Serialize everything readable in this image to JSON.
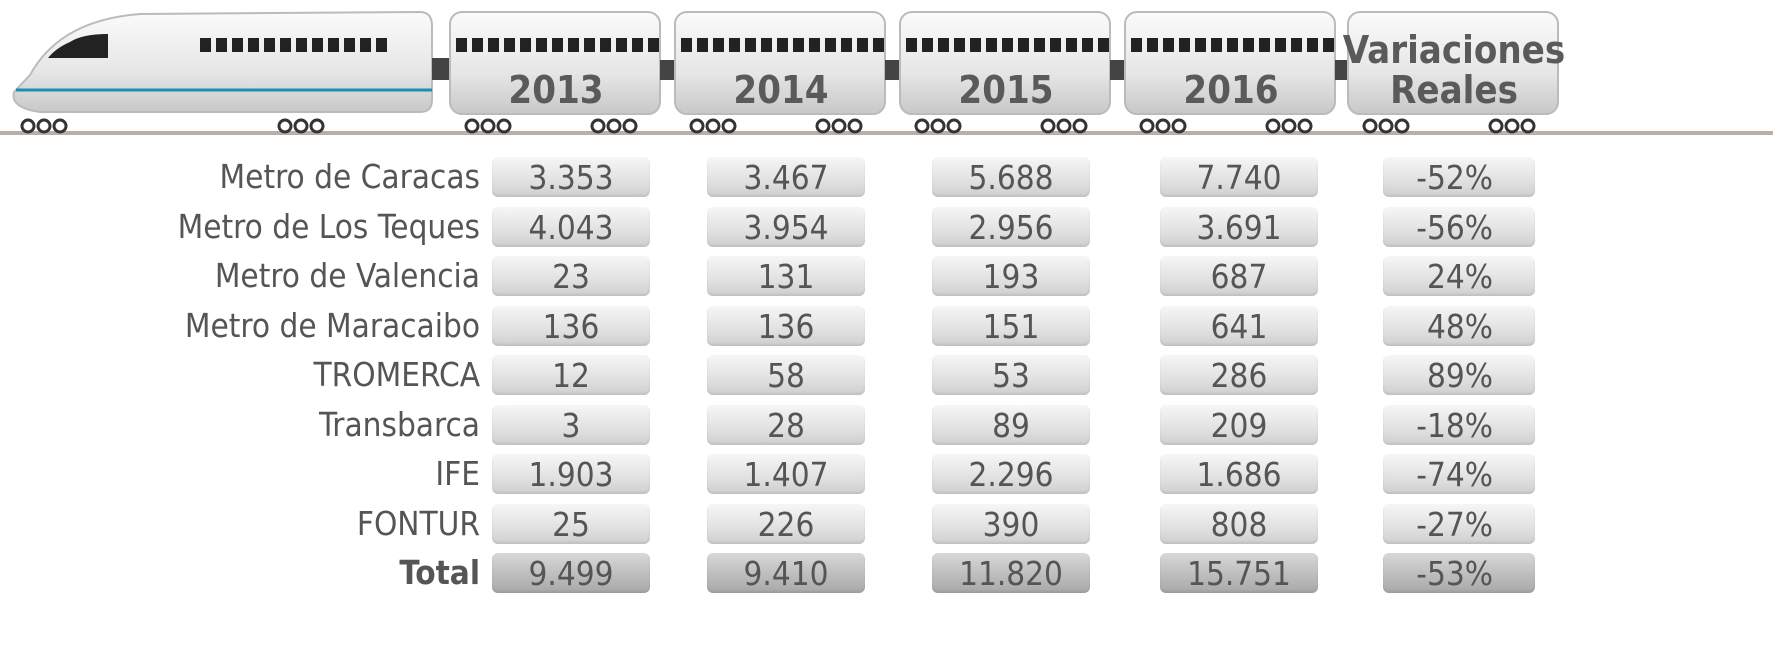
{
  "table": {
    "columns": [
      "2013",
      "2014",
      "2015",
      "2016",
      "Variaciones Reales"
    ],
    "rows": [
      [
        "Metro de Caracas",
        "3.353",
        "3.467",
        "5.688",
        "7.740",
        "-52%"
      ],
      [
        "Metro de Los Teques",
        "4.043",
        "3.954",
        "2.956",
        "3.691",
        "-56%"
      ],
      [
        "Metro de Valencia",
        "23",
        "131",
        "193",
        "687",
        "24%"
      ],
      [
        "Metro de Maracaibo",
        "136",
        "136",
        "151",
        "641",
        "48%"
      ],
      [
        "TROMERCA",
        "12",
        "58",
        "53",
        "286",
        "89%"
      ],
      [
        "Transbarca",
        "3",
        "28",
        "89",
        "209",
        "-18%"
      ],
      [
        "IFE",
        "1.903",
        "1.407",
        "2.296",
        "1.686",
        "-74%"
      ],
      [
        "FONTUR",
        "25",
        "226",
        "390",
        "808",
        "-27%"
      ],
      [
        "Total",
        "9.499",
        "9.410",
        "11.820",
        "15.751",
        "-53%"
      ]
    ]
  }
}
